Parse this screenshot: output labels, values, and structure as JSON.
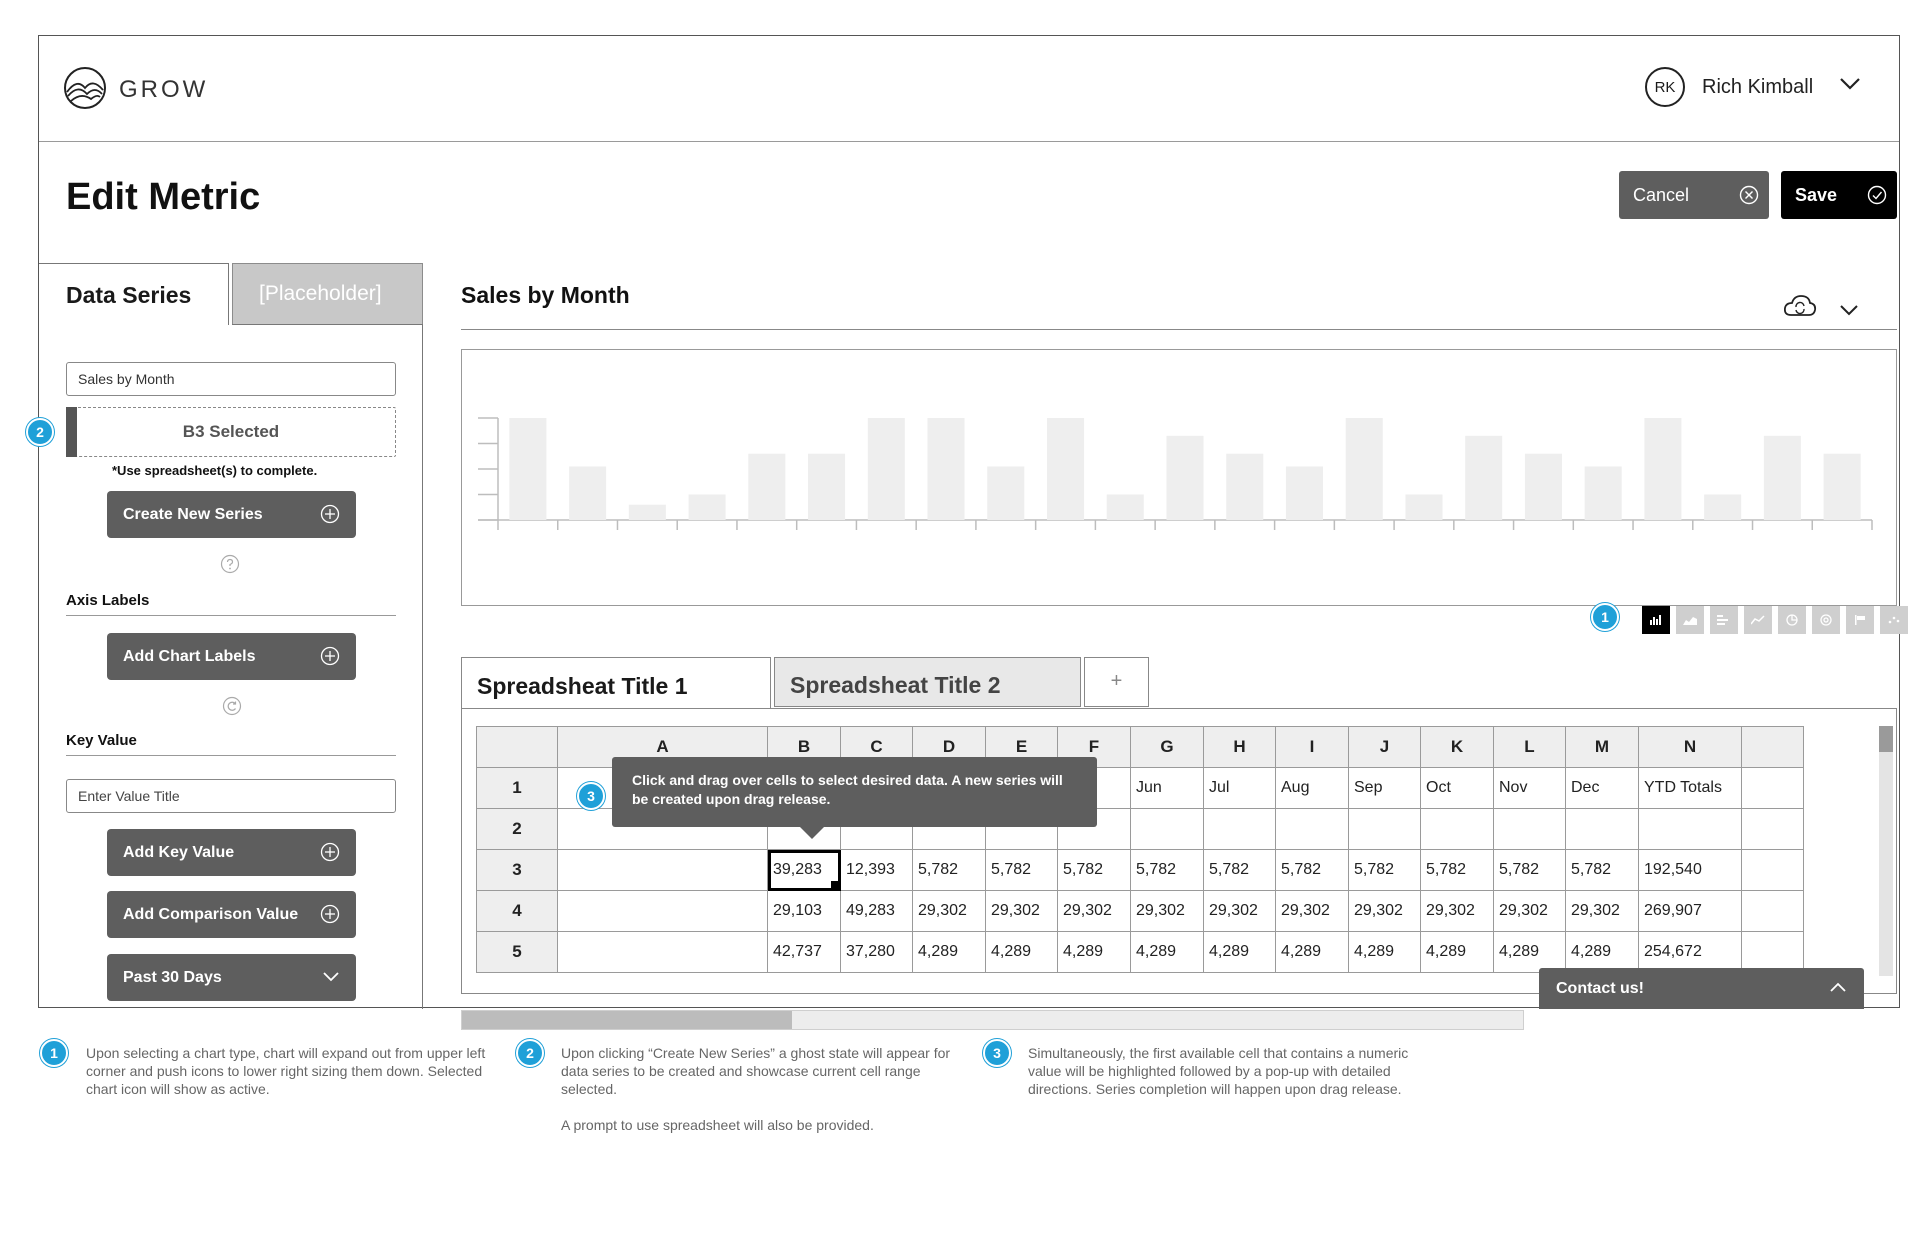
{
  "app": {
    "logo_text": "GROW",
    "user_initials": "RK",
    "user_name": "Rich Kimball"
  },
  "page": {
    "title": "Edit Metric",
    "cancel_label": "Cancel",
    "save_label": "Save"
  },
  "left_panel": {
    "tab_active": "Data Series",
    "tab_inactive": "[Placeholder]",
    "series_name_value": "Sales by Month",
    "ghost_selected": "B3 Selected",
    "ghost_note": "*Use spreadsheet(s) to complete.",
    "create_series_label": "Create New Series",
    "axis_labels_heading": "Axis Labels",
    "add_chart_labels": "Add Chart Labels",
    "key_value_heading": "Key Value",
    "key_value_placeholder": "Enter Value Title",
    "add_key_value": "Add Key Value",
    "add_comparison_value": "Add Comparison Value",
    "date_range": "Past 30 Days"
  },
  "chart": {
    "title": "Sales by Month",
    "type_icons": [
      "bar-chart-icon",
      "area-chart-icon",
      "horizontal-bar-icon",
      "line-chart-icon",
      "pie-chart-icon",
      "donut-chart-icon",
      "flag-icon",
      "scatter-icon"
    ],
    "active_type": "bar-chart-icon"
  },
  "chart_data": {
    "type": "bar",
    "title": "Sales by Month",
    "xlabel": "",
    "ylabel": "",
    "ylim": [
      0,
      4
    ],
    "values": [
      4,
      2.1,
      0.6,
      1,
      2.6,
      2.6,
      4,
      4,
      2.1,
      4,
      1,
      3.3,
      2.6,
      2.1,
      4,
      1,
      3.3,
      2.6,
      2.1,
      4,
      1,
      3.3,
      2.6
    ],
    "grid": false
  },
  "sheet": {
    "tab1": "Spreadsheat Title 1",
    "tab2": "Spreadsheat Title 2",
    "tab_add": "+",
    "columns": [
      "A",
      "B",
      "C",
      "D",
      "E",
      "F",
      "G",
      "H",
      "I",
      "J",
      "K",
      "L",
      "M",
      "N",
      ""
    ],
    "rows": [
      {
        "num": "1",
        "cells": [
          "",
          "",
          "",
          "",
          "",
          "",
          "Jun",
          "Jul",
          "Aug",
          "Sep",
          "Oct",
          "Nov",
          "Dec",
          "YTD Totals",
          ""
        ]
      },
      {
        "num": "2",
        "cells": [
          "",
          "",
          "",
          "",
          "",
          "",
          "",
          "",
          "",
          "",
          "",
          "",
          "",
          "",
          ""
        ]
      },
      {
        "num": "3",
        "cells": [
          "",
          "39,283",
          "12,393",
          "5,782",
          "5,782",
          "5,782",
          "5,782",
          "5,782",
          "5,782",
          "5,782",
          "5,782",
          "5,782",
          "5,782",
          "192,540",
          ""
        ]
      },
      {
        "num": "4",
        "cells": [
          "",
          "29,103",
          "49,283",
          "29,302",
          "29,302",
          "29,302",
          "29,302",
          "29,302",
          "29,302",
          "29,302",
          "29,302",
          "29,302",
          "29,302",
          "269,907",
          ""
        ]
      },
      {
        "num": "5",
        "cells": [
          "",
          "42,737",
          "37,280",
          "4,289",
          "4,289",
          "4,289",
          "4,289",
          "4,289",
          "4,289",
          "4,289",
          "4,289",
          "4,289",
          "4,289",
          "254,672",
          ""
        ]
      }
    ],
    "selected_cell": "B3",
    "tooltip": "Click and drag over cells to select desired data. A new series will be created upon drag release."
  },
  "contact_label": "Contact us!",
  "badges": {
    "one": "1",
    "two": "2",
    "three": "3"
  },
  "notes": {
    "n1": "Upon selecting a chart type, chart will expand out from upper left corner and push icons to lower right sizing them down. Selected chart icon will show as active.",
    "n2": "Upon clicking “Create New Series” a ghost state will appear for data series to be created and showcase current cell range selected.",
    "n2b": "A prompt to use spreadsheet will also be provided.",
    "n3": "Simultaneously, the first available cell that contains a numeric value will be highlighted followed by a pop-up with detailed directions. Series completion will happen upon drag release."
  },
  "colors": {
    "accent": "#1fa0d8",
    "dark_button": "#5e5e5e",
    "bar": "#eeeeee"
  }
}
